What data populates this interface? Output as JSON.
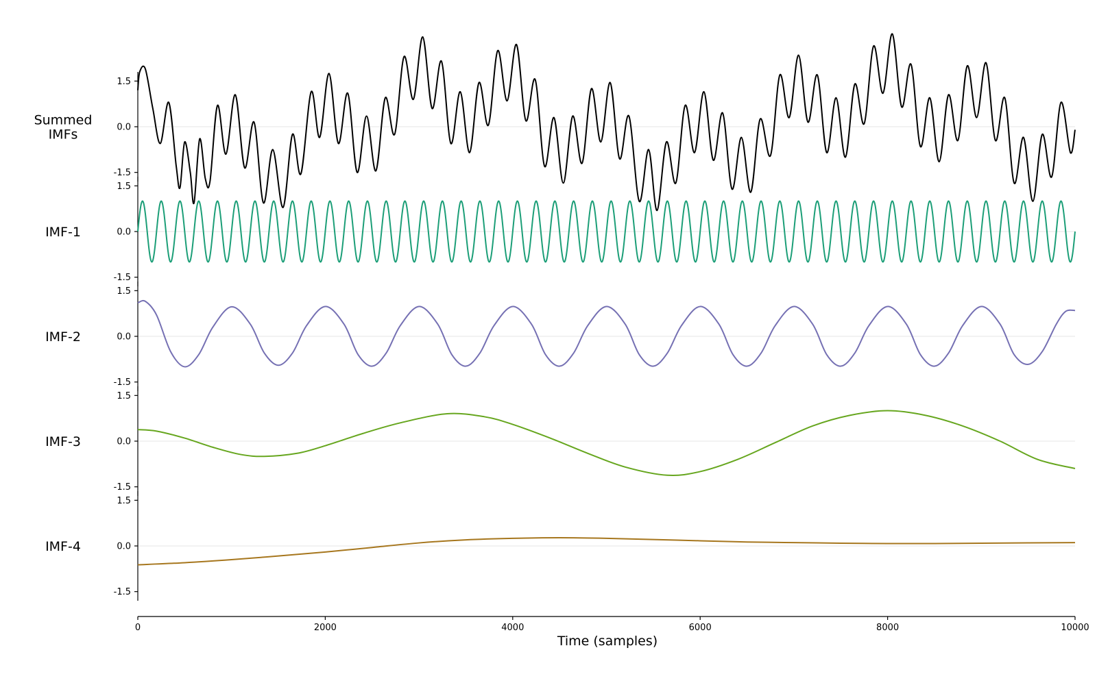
{
  "chart_data": {
    "type": "line",
    "xlabel": "Time (samples)",
    "xlim": [
      0,
      10000
    ],
    "x_ticks": [
      0,
      2000,
      4000,
      6000,
      8000,
      10000
    ],
    "x_tick_labels": [
      "0",
      "2000",
      "4000",
      "6000",
      "8000",
      "10000"
    ],
    "ylim": [
      -1.8,
      1.8
    ],
    "y_ticks": [
      -1.5,
      0.0,
      1.5
    ],
    "y_tick_labels": [
      "-1.5",
      "0.0",
      "1.5"
    ],
    "grid": "zero line only",
    "panels": [
      {
        "label_lines": [
          "Summed",
          "IMFs"
        ],
        "color": "#000000",
        "points": [
          [
            0,
            1.2
          ],
          [
            20,
            1.8
          ],
          [
            80,
            1.9
          ],
          [
            160,
            0.6
          ],
          [
            240,
            -0.55
          ],
          [
            330,
            0.8
          ],
          [
            410,
            -1.3
          ],
          [
            450,
            -2.0
          ],
          [
            500,
            -0.5
          ],
          [
            560,
            -1.5
          ],
          [
            600,
            -2.5
          ],
          [
            660,
            -0.4
          ],
          [
            720,
            -1.7
          ],
          [
            770,
            -1.8
          ],
          [
            850,
            0.7
          ],
          [
            940,
            -0.9
          ],
          [
            1040,
            1.05
          ],
          [
            1140,
            -1.35
          ],
          [
            1240,
            0.15
          ],
          [
            1340,
            -2.5
          ],
          [
            1440,
            -0.75
          ],
          [
            1550,
            -2.65
          ],
          [
            1650,
            -0.25
          ],
          [
            1740,
            -1.55
          ],
          [
            1850,
            1.15
          ],
          [
            1940,
            -0.35
          ],
          [
            2040,
            1.75
          ],
          [
            2140,
            -0.55
          ],
          [
            2240,
            1.1
          ],
          [
            2340,
            -1.5
          ],
          [
            2440,
            0.35
          ],
          [
            2540,
            -1.45
          ],
          [
            2640,
            0.95
          ],
          [
            2740,
            -0.25
          ],
          [
            2840,
            2.3
          ],
          [
            2940,
            0.9
          ],
          [
            3040,
            2.95
          ],
          [
            3140,
            0.6
          ],
          [
            3240,
            2.15
          ],
          [
            3340,
            -0.55
          ],
          [
            3440,
            1.15
          ],
          [
            3540,
            -0.85
          ],
          [
            3640,
            1.45
          ],
          [
            3740,
            0.05
          ],
          [
            3840,
            2.5
          ],
          [
            3940,
            0.85
          ],
          [
            4040,
            2.7
          ],
          [
            4140,
            0.2
          ],
          [
            4240,
            1.55
          ],
          [
            4340,
            -1.3
          ],
          [
            4440,
            0.3
          ],
          [
            4540,
            -1.85
          ],
          [
            4640,
            0.35
          ],
          [
            4740,
            -1.2
          ],
          [
            4840,
            1.25
          ],
          [
            4940,
            -0.5
          ],
          [
            5040,
            1.45
          ],
          [
            5140,
            -1.05
          ],
          [
            5240,
            0.35
          ],
          [
            5350,
            -2.45
          ],
          [
            5450,
            -0.75
          ],
          [
            5540,
            -2.75
          ],
          [
            5640,
            -0.5
          ],
          [
            5740,
            -1.85
          ],
          [
            5840,
            0.7
          ],
          [
            5940,
            -0.85
          ],
          [
            6040,
            1.15
          ],
          [
            6140,
            -1.1
          ],
          [
            6240,
            0.45
          ],
          [
            6340,
            -2.05
          ],
          [
            6440,
            -0.35
          ],
          [
            6540,
            -2.15
          ],
          [
            6640,
            0.25
          ],
          [
            6750,
            -0.95
          ],
          [
            6850,
            1.7
          ],
          [
            6950,
            0.3
          ],
          [
            7050,
            2.35
          ],
          [
            7150,
            0.15
          ],
          [
            7250,
            1.7
          ],
          [
            7350,
            -0.85
          ],
          [
            7450,
            0.95
          ],
          [
            7550,
            -1.0
          ],
          [
            7650,
            1.4
          ],
          [
            7750,
            0.1
          ],
          [
            7850,
            2.65
          ],
          [
            7950,
            1.1
          ],
          [
            8050,
            3.05
          ],
          [
            8150,
            0.65
          ],
          [
            8250,
            2.05
          ],
          [
            8350,
            -0.65
          ],
          [
            8450,
            0.95
          ],
          [
            8550,
            -1.15
          ],
          [
            8650,
            1.05
          ],
          [
            8750,
            -0.45
          ],
          [
            8850,
            2.0
          ],
          [
            8950,
            0.3
          ],
          [
            9050,
            2.1
          ],
          [
            9150,
            -0.45
          ],
          [
            9250,
            0.95
          ],
          [
            9350,
            -1.85
          ],
          [
            9450,
            -0.35
          ],
          [
            9550,
            -2.45
          ],
          [
            9650,
            -0.25
          ],
          [
            9750,
            -1.65
          ],
          [
            9850,
            0.8
          ],
          [
            9950,
            -0.85
          ],
          [
            10000,
            -0.1
          ]
        ]
      },
      {
        "label_lines": [
          "IMF-1"
        ],
        "color": "#1b9e77",
        "generator": {
          "kind": "sine",
          "amplitude": 1.0,
          "period": 200,
          "phase": 0,
          "offset": 0
        },
        "points": []
      },
      {
        "label_lines": [
          "IMF-2"
        ],
        "color": "#7570b3",
        "points": [
          [
            0,
            1.1
          ],
          [
            80,
            1.15
          ],
          [
            200,
            0.7
          ],
          [
            350,
            -0.5
          ],
          [
            500,
            -1.0
          ],
          [
            650,
            -0.6
          ],
          [
            800,
            0.3
          ],
          [
            1000,
            0.97
          ],
          [
            1200,
            0.4
          ],
          [
            1350,
            -0.55
          ],
          [
            1500,
            -0.95
          ],
          [
            1650,
            -0.55
          ],
          [
            1800,
            0.35
          ],
          [
            2000,
            0.98
          ],
          [
            2200,
            0.4
          ],
          [
            2350,
            -0.6
          ],
          [
            2500,
            -0.98
          ],
          [
            2650,
            -0.55
          ],
          [
            2800,
            0.35
          ],
          [
            3000,
            0.98
          ],
          [
            3200,
            0.4
          ],
          [
            3350,
            -0.6
          ],
          [
            3500,
            -0.98
          ],
          [
            3650,
            -0.55
          ],
          [
            3800,
            0.35
          ],
          [
            4000,
            0.98
          ],
          [
            4200,
            0.4
          ],
          [
            4350,
            -0.6
          ],
          [
            4500,
            -0.98
          ],
          [
            4650,
            -0.55
          ],
          [
            4800,
            0.35
          ],
          [
            5000,
            0.98
          ],
          [
            5200,
            0.4
          ],
          [
            5350,
            -0.6
          ],
          [
            5500,
            -0.98
          ],
          [
            5650,
            -0.55
          ],
          [
            5800,
            0.35
          ],
          [
            6000,
            0.98
          ],
          [
            6200,
            0.4
          ],
          [
            6350,
            -0.6
          ],
          [
            6500,
            -0.98
          ],
          [
            6650,
            -0.55
          ],
          [
            6800,
            0.35
          ],
          [
            7000,
            0.98
          ],
          [
            7200,
            0.4
          ],
          [
            7350,
            -0.6
          ],
          [
            7500,
            -0.98
          ],
          [
            7650,
            -0.55
          ],
          [
            7800,
            0.35
          ],
          [
            8000,
            0.98
          ],
          [
            8200,
            0.4
          ],
          [
            8350,
            -0.6
          ],
          [
            8500,
            -0.98
          ],
          [
            8650,
            -0.55
          ],
          [
            8800,
            0.35
          ],
          [
            9000,
            0.98
          ],
          [
            9200,
            0.4
          ],
          [
            9350,
            -0.6
          ],
          [
            9500,
            -0.92
          ],
          [
            9650,
            -0.5
          ],
          [
            9800,
            0.4
          ],
          [
            9900,
            0.82
          ],
          [
            10000,
            0.85
          ]
        ]
      },
      {
        "label_lines": [
          "IMF-3"
        ],
        "color": "#66a61e",
        "points": [
          [
            0,
            0.38
          ],
          [
            200,
            0.33
          ],
          [
            500,
            0.1
          ],
          [
            800,
            -0.2
          ],
          [
            1100,
            -0.44
          ],
          [
            1350,
            -0.5
          ],
          [
            1700,
            -0.4
          ],
          [
            2000,
            -0.15
          ],
          [
            2400,
            0.25
          ],
          [
            2800,
            0.6
          ],
          [
            3300,
            0.9
          ],
          [
            3700,
            0.8
          ],
          [
            4000,
            0.55
          ],
          [
            4400,
            0.1
          ],
          [
            4800,
            -0.4
          ],
          [
            5200,
            -0.85
          ],
          [
            5650,
            -1.12
          ],
          [
            6000,
            -1.0
          ],
          [
            6400,
            -0.6
          ],
          [
            6800,
            -0.05
          ],
          [
            7200,
            0.5
          ],
          [
            7600,
            0.85
          ],
          [
            8000,
            1.0
          ],
          [
            8400,
            0.85
          ],
          [
            8800,
            0.5
          ],
          [
            9200,
            0.0
          ],
          [
            9600,
            -0.6
          ],
          [
            10000,
            -0.9
          ]
        ]
      },
      {
        "label_lines": [
          "IMF-4"
        ],
        "color": "#a6761d",
        "points": [
          [
            0,
            -0.62
          ],
          [
            500,
            -0.55
          ],
          [
            1000,
            -0.45
          ],
          [
            1500,
            -0.33
          ],
          [
            2000,
            -0.2
          ],
          [
            2500,
            -0.05
          ],
          [
            3000,
            0.1
          ],
          [
            3500,
            0.2
          ],
          [
            4000,
            0.25
          ],
          [
            4500,
            0.27
          ],
          [
            5000,
            0.25
          ],
          [
            5500,
            0.21
          ],
          [
            6000,
            0.17
          ],
          [
            6500,
            0.13
          ],
          [
            7000,
            0.11
          ],
          [
            7500,
            0.09
          ],
          [
            8000,
            0.08
          ],
          [
            8500,
            0.08
          ],
          [
            9000,
            0.09
          ],
          [
            9500,
            0.1
          ],
          [
            10000,
            0.11
          ]
        ]
      }
    ]
  }
}
